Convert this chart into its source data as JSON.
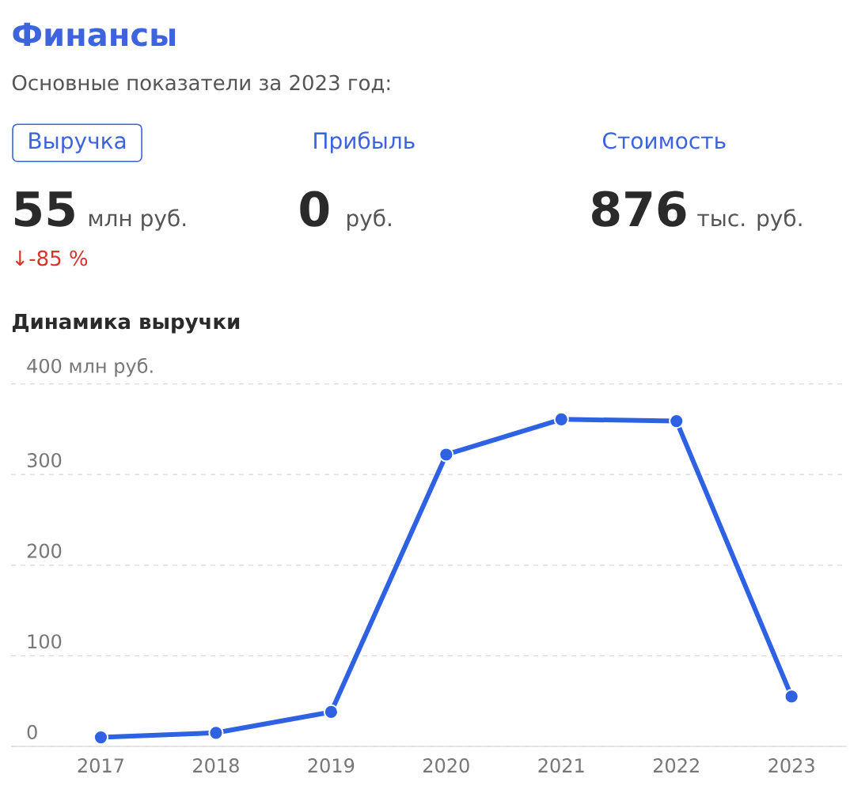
{
  "chart_data": [
    {
      "type": "other",
      "title": "Финансы",
      "subtitle": "Основные показатели за 2023 год:",
      "annotations": [
        "Выручка",
        "Прибыль",
        "Стоимость",
        "55",
        "млн руб.",
        "0",
        "руб.",
        "876",
        "тыс. руб.",
        "↓-85 %"
      ]
    },
    {
      "type": "line",
      "title": "Динамика выручки",
      "categories": [
        "2017",
        "2018",
        "2019",
        "2020",
        "2021",
        "2022",
        "2023"
      ],
      "values": [
        10,
        15,
        38,
        322,
        361,
        359,
        55
      ],
      "color": "#2f62e3",
      "ylim": [
        0,
        400
      ],
      "yticks": [
        0,
        100,
        200,
        300,
        {
          "value": 400,
          "label": "400 млн руб."
        }
      ],
      "grid": "y",
      "marker": "circle"
    }
  ]
}
